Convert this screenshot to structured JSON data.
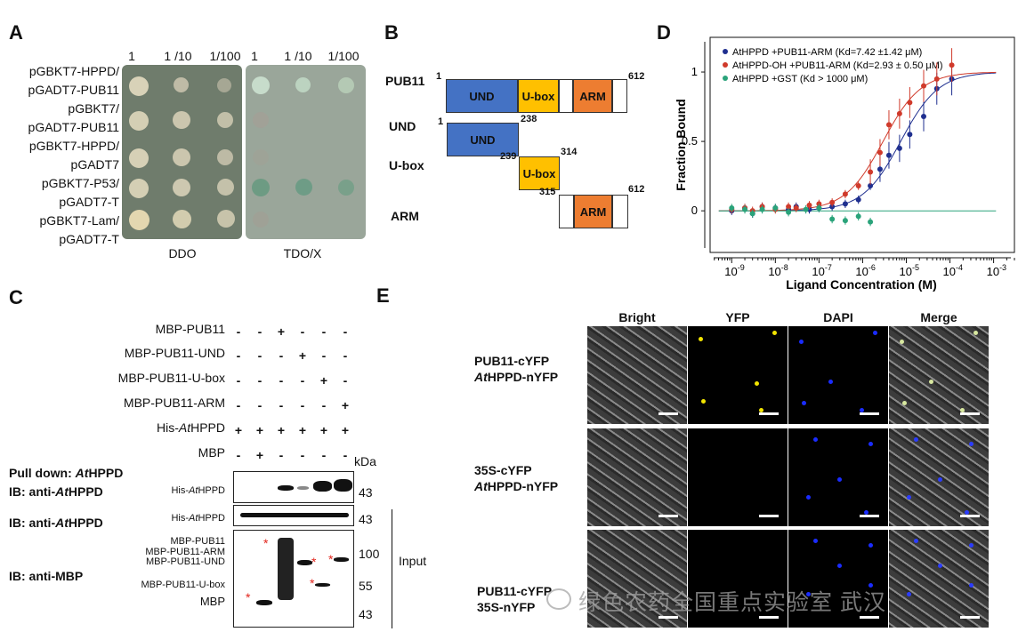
{
  "panels": {
    "a": "A",
    "b": "B",
    "c": "C",
    "d": "D",
    "e": "E"
  },
  "panel_a": {
    "dilutions_ddo": [
      "1",
      "1 /10",
      "1/100"
    ],
    "dilutions_tdo": [
      "1",
      "1 /10",
      "1/100"
    ],
    "rows": [
      [
        "pGBKT7-HPPD/",
        "pGADT7-PUB11"
      ],
      [
        "pGBKT7/",
        "pGADT7-PUB11"
      ],
      [
        "pGBKT7-HPPD/",
        "pGADT7"
      ],
      [
        "pGBKT7-P53/",
        "pGADT7-T"
      ],
      [
        "pGBKT7-Lam/",
        "pGADT7-T"
      ]
    ],
    "media": [
      "DDO",
      "TDO/X"
    ],
    "colors": {
      "ddo": "#6f7c6c",
      "tdo": "#9aa69a"
    }
  },
  "panel_b": {
    "rows": [
      "PUB11",
      "UND",
      "U-box",
      "ARM"
    ],
    "domains": {
      "und": "UND",
      "ubox": "U-box",
      "arm": "ARM"
    },
    "numbers": {
      "pub11_start": "1",
      "pub11_end": "612",
      "und_start": "1",
      "und_end": "238",
      "ubox_start": "239",
      "ubox_end": "314",
      "arm_start": "315",
      "arm_end": "612",
      "und_boundary": "238"
    },
    "colors": {
      "und": "#4472c4",
      "ubox": "#ffc000",
      "arm": "#ed7d31"
    }
  },
  "panel_c": {
    "rows": [
      "MBP-PUB11",
      "MBP-PUB11-UND",
      "MBP-PUB11-U-box",
      "MBP-PUB11-ARM",
      "His-AtHPPD",
      "MBP"
    ],
    "his_prefix": "His-",
    "his_italic": "At",
    "his_suffix": "HPPD",
    "signs": [
      [
        "-",
        "-",
        "+",
        "-",
        "-",
        "-"
      ],
      [
        "-",
        "-",
        "-",
        "+",
        "-",
        "-"
      ],
      [
        "-",
        "-",
        "-",
        "-",
        "+",
        "-"
      ],
      [
        "-",
        "-",
        "-",
        "-",
        "-",
        "+"
      ],
      [
        "+",
        "+",
        "+",
        "+",
        "+",
        "+"
      ],
      [
        "-",
        "+",
        "-",
        "-",
        "-",
        "-"
      ]
    ],
    "kda": "kDa",
    "pulldown": "Pull down: ",
    "ib1": "IB: anti-",
    "ib2": "IB: anti-",
    "ib3": "IB: anti-MBP",
    "italic_at": "At",
    "hppd": "HPPD",
    "blot_his": "His-AtHPPD",
    "mw": [
      "43",
      "43",
      "100",
      "55",
      "43"
    ],
    "mbp_labels": [
      "MBP-PUB11",
      "MBP-PUB11-ARM",
      "MBP-PUB11-UND",
      "MBP-PUB11-U-box",
      "MBP"
    ],
    "input": "Input",
    "asterisk": "*"
  },
  "panel_e": {
    "columns": [
      "Bright",
      "YFP",
      "DAPI",
      "Merge"
    ],
    "rows": [
      [
        "PUB11-cYFP",
        "AtHPPD-nYFP"
      ],
      [
        "35S-cYFP",
        "AtHPPD-nYFP"
      ],
      [
        "PUB11-cYFP",
        "35S-nYFP"
      ]
    ],
    "row_b_prefix": "HPPD-nYFP",
    "watermark": "绿色农药全国重点实验室 武汉"
  },
  "chart_data": {
    "type": "scatter",
    "xlabel": "Ligand Concentration (M)",
    "ylabel": "Fraction Bound",
    "xscale": "log",
    "xlim": [
      3.2e-10,
      0.003
    ],
    "ylim": [
      -0.3,
      1.25
    ],
    "xticks": [
      "10-9",
      "10-8",
      "10-7",
      "10-6",
      "10-5",
      "10-4",
      "10-3"
    ],
    "yticks": [
      "0",
      "0.5",
      "1"
    ],
    "legend_position": "top-left",
    "series": [
      {
        "name": "AtHPPD +PUB11-ARM (Kd=7.42 ±1.42 μM)",
        "color": "#1f2f8f",
        "kd": 7.42e-06,
        "x": [
          1e-09,
          2e-09,
          3e-09,
          5e-09,
          1e-08,
          2e-08,
          3e-08,
          6e-08,
          1e-07,
          2e-07,
          4e-07,
          8e-07,
          1.5e-06,
          2.5e-06,
          4e-06,
          7e-06,
          1.2e-05,
          2.5e-05,
          5e-05,
          0.00011
        ],
        "y": [
          0.0,
          0.02,
          -0.02,
          0.03,
          0.02,
          0.01,
          0.03,
          0.01,
          0.02,
          0.03,
          0.05,
          0.08,
          0.18,
          0.3,
          0.4,
          0.45,
          0.55,
          0.68,
          0.88,
          0.95
        ]
      },
      {
        "name": "AtHPPD-OH +PUB11-ARM (Kd=2.93 ± 0.50 μM)",
        "color": "#d03a2b",
        "kd": 2.93e-06,
        "x": [
          1e-09,
          2e-09,
          3e-09,
          5e-09,
          1e-08,
          2e-08,
          3e-08,
          6e-08,
          1e-07,
          2e-07,
          4e-07,
          8e-07,
          1.5e-06,
          2.5e-06,
          4e-06,
          7e-06,
          1.2e-05,
          2.5e-05,
          5e-05,
          0.00011
        ],
        "y": [
          0.01,
          0.02,
          0.0,
          0.03,
          0.01,
          0.03,
          0.02,
          0.04,
          0.05,
          0.06,
          0.12,
          0.18,
          0.28,
          0.42,
          0.62,
          0.7,
          0.78,
          0.9,
          0.95,
          1.05
        ]
      },
      {
        "name": "AtHPPD +GST (Kd > 1000 μM)",
        "color": "#2aa37a",
        "kd": null,
        "x": [
          1e-09,
          2e-09,
          3e-09,
          5e-09,
          1e-08,
          2e-08,
          5e-08,
          1e-07,
          2e-07,
          4e-07,
          8e-07,
          1.5e-06
        ],
        "y": [
          0.02,
          0.01,
          -0.02,
          0.01,
          0.02,
          -0.01,
          0.01,
          0.02,
          -0.06,
          -0.07,
          -0.04,
          -0.08
        ]
      }
    ]
  }
}
